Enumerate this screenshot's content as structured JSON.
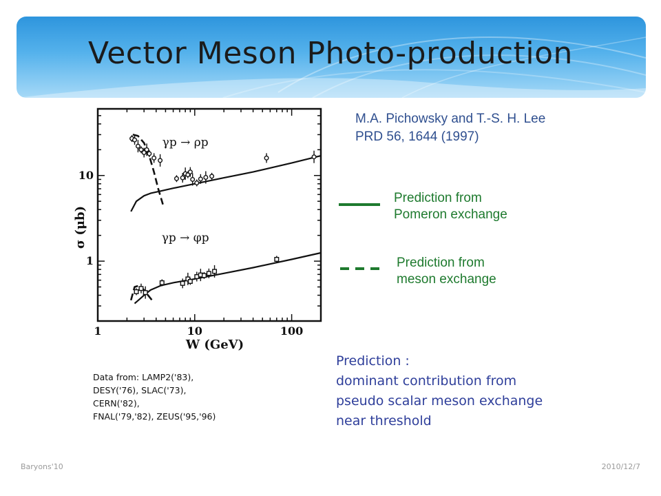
{
  "slide": {
    "title": "Vector Meson Photo-production",
    "reference": {
      "authors": "M.A. Pichowsky and T.-S. H. Lee",
      "journal": "PRD 56, 1644 (1997)"
    },
    "legend": [
      {
        "line1": "Prediction from",
        "line2": "Pomeron exchange",
        "style": "solid",
        "color": "#1e7a2e"
      },
      {
        "line1": "Prediction from",
        "line2": "meson exchange",
        "style": "dashed",
        "color": "#1e7a2e"
      }
    ],
    "note": [
      "Prediction :",
      "dominant contribution from",
      "pseudo scalar meson exchange",
      "near threshold"
    ],
    "data_source": [
      "Data from: LAMP2('83),",
      "DESY('76), SLAC('73),",
      "CERN('82),",
      "FNAL('79,'82),  ZEUS('95,'96)"
    ],
    "footer_left": "Baryons'10",
    "footer_right": "2010/12/7"
  },
  "chart_data": {
    "type": "scatter",
    "xlabel": "W (GeV)",
    "ylabel": "σ (μb)",
    "xscale": "log",
    "yscale": "log",
    "xlim": [
      1,
      200
    ],
    "ylim": [
      0.2,
      60
    ],
    "xticks": [
      {
        "v": 1,
        "label": "1"
      },
      {
        "v": 10,
        "label": "10"
      },
      {
        "v": 100,
        "label": "100"
      }
    ],
    "yticks": [
      {
        "v": 1,
        "label": "1"
      },
      {
        "v": 10,
        "label": "10"
      }
    ],
    "annotations": [
      {
        "text": "γp → ρp",
        "x": 8,
        "y": 22
      },
      {
        "text": "γp → φp",
        "x": 8,
        "y": 1.7
      }
    ],
    "series": [
      {
        "kind": "pomeron-solid",
        "x": [
          2.2,
          2.5,
          3,
          3.5,
          4.5,
          6,
          10,
          20,
          40,
          100,
          200
        ],
        "y": [
          3.8,
          5.0,
          5.8,
          6.2,
          6.6,
          7.1,
          8.0,
          9.4,
          11.0,
          14.0,
          17.0
        ]
      },
      {
        "kind": "meson-dashed",
        "x": [
          2.3,
          2.6,
          3.0,
          3.4,
          3.8,
          4.2,
          4.7
        ],
        "y": [
          30.0,
          29.0,
          24.0,
          17.0,
          11.0,
          7.0,
          4.6
        ]
      },
      {
        "kind": "data",
        "x": [
          2.25,
          2.4,
          2.6,
          2.8,
          3.0,
          3.2,
          3.4,
          3.8,
          4.4,
          6.5,
          7.5,
          8.0,
          8.5,
          9.0,
          9.5,
          10.5,
          11.5,
          13,
          15,
          55,
          170
        ],
        "y": [
          27.0,
          26.0,
          22.0,
          20.0,
          18.5,
          20.0,
          18.0,
          16.0,
          15.0,
          9.2,
          9.4,
          10.5,
          10.2,
          11.0,
          9.0,
          8.2,
          9.1,
          9.5,
          9.8,
          16.0,
          16.5
        ]
      },
      {
        "kind": "pomeron-solid",
        "x": [
          2.4,
          2.7,
          3.0,
          3.5,
          4.5,
          6,
          10,
          20,
          40,
          100,
          200
        ],
        "y": [
          0.32,
          0.36,
          0.4,
          0.46,
          0.52,
          0.56,
          0.62,
          0.72,
          0.84,
          1.05,
          1.25
        ]
      },
      {
        "kind": "meson-dashed",
        "x": [
          2.2,
          2.4,
          2.7,
          3.0,
          3.3,
          3.7
        ],
        "y": [
          0.35,
          0.5,
          0.52,
          0.46,
          0.4,
          0.34
        ]
      },
      {
        "kind": "data",
        "x": [
          2.5,
          2.8,
          3.1,
          4.6,
          7.5,
          8.5,
          9.0,
          10.5,
          11.5,
          12.5,
          14,
          16,
          70
        ],
        "y": [
          0.44,
          0.48,
          0.43,
          0.56,
          0.55,
          0.62,
          0.58,
          0.66,
          0.69,
          0.68,
          0.72,
          0.76,
          1.05
        ]
      }
    ]
  }
}
